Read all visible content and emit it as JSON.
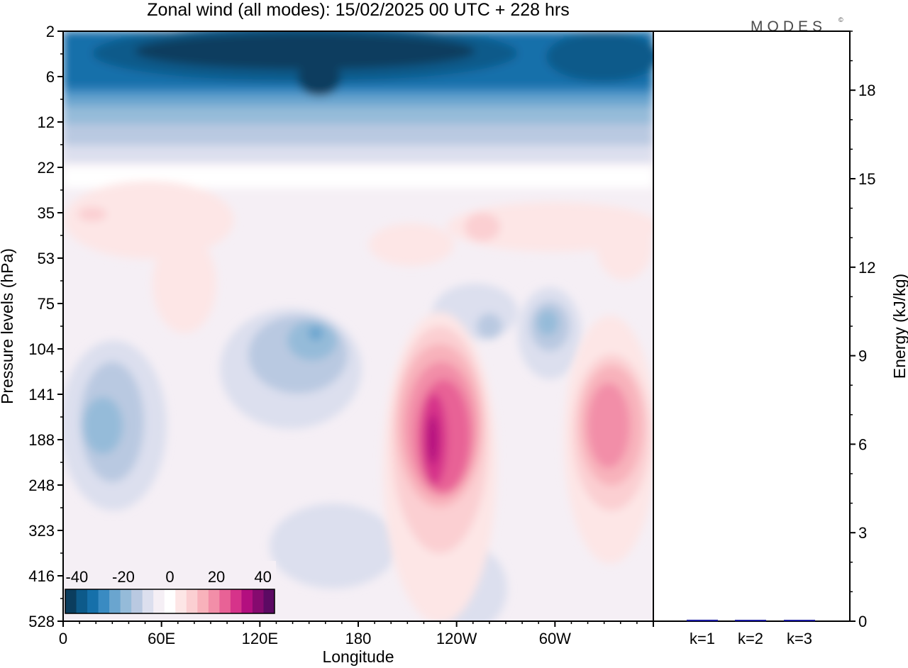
{
  "chart_data": [
    {
      "type": "heatmap",
      "title": "Zonal wind (all modes):  15/02/2025  00 UTC  + 228 hrs",
      "xlabel": "Longitude",
      "ylabel": "Pressure levels (hPa)",
      "x_ticks": [
        "0",
        "60E",
        "120E",
        "180",
        "120W",
        "60W"
      ],
      "x_tick_degrees": [
        0,
        60,
        120,
        180,
        240,
        300
      ],
      "xlim": [
        0,
        360
      ],
      "y_ticks": [
        "2",
        "6",
        "12",
        "22",
        "35",
        "53",
        "75",
        "104",
        "141",
        "188",
        "248",
        "323",
        "416",
        "528"
      ],
      "y_scale": "model levels (nonlinear, top = 2 hPa)",
      "colorbar": {
        "ticks": [
          "-40",
          "-20",
          "0",
          "20",
          "40"
        ],
        "min": -45,
        "max": 45,
        "step": 5,
        "colors": [
          "#0b3d5e",
          "#0d5a8a",
          "#1670aa",
          "#3a8bc2",
          "#6aa5cf",
          "#95bbd9",
          "#b9c9e1",
          "#dcdfee",
          "#f5eff5",
          "#ffffff",
          "#fde6e6",
          "#fbcfd2",
          "#f8b2bb",
          "#f28ea8",
          "#e86296",
          "#d6338a",
          "#b30f7f",
          "#860a6f",
          "#5c0a63"
        ]
      },
      "features": [
        {
          "name": "stratospheric easterlies",
          "value": -40,
          "levels_hPa": "2-10"
        },
        {
          "name": "westerly jet near 120W",
          "value": 30,
          "levels_hPa": "140-250"
        },
        {
          "name": "westerly jet near 35W",
          "value": 20,
          "levels_hPa": "140-250"
        },
        {
          "name": "easterlies near 150E",
          "value": -15,
          "levels_hPa": "75-110"
        }
      ]
    },
    {
      "type": "bar",
      "ylabel": "Energy (kJ/kg)",
      "categories": [
        "k=1",
        "k=2",
        "k=3"
      ],
      "values": [
        0.05,
        0.02,
        0.02
      ],
      "ylim": [
        0,
        20
      ],
      "y_ticks": [
        "0",
        "3",
        "6",
        "9",
        "12",
        "15",
        "18"
      ],
      "y_tick_values": [
        0,
        3,
        6,
        9,
        12,
        15,
        18
      ],
      "bar_color": "#1a1aa0"
    }
  ],
  "logo_text": "MODES",
  "logo_mark": "©"
}
